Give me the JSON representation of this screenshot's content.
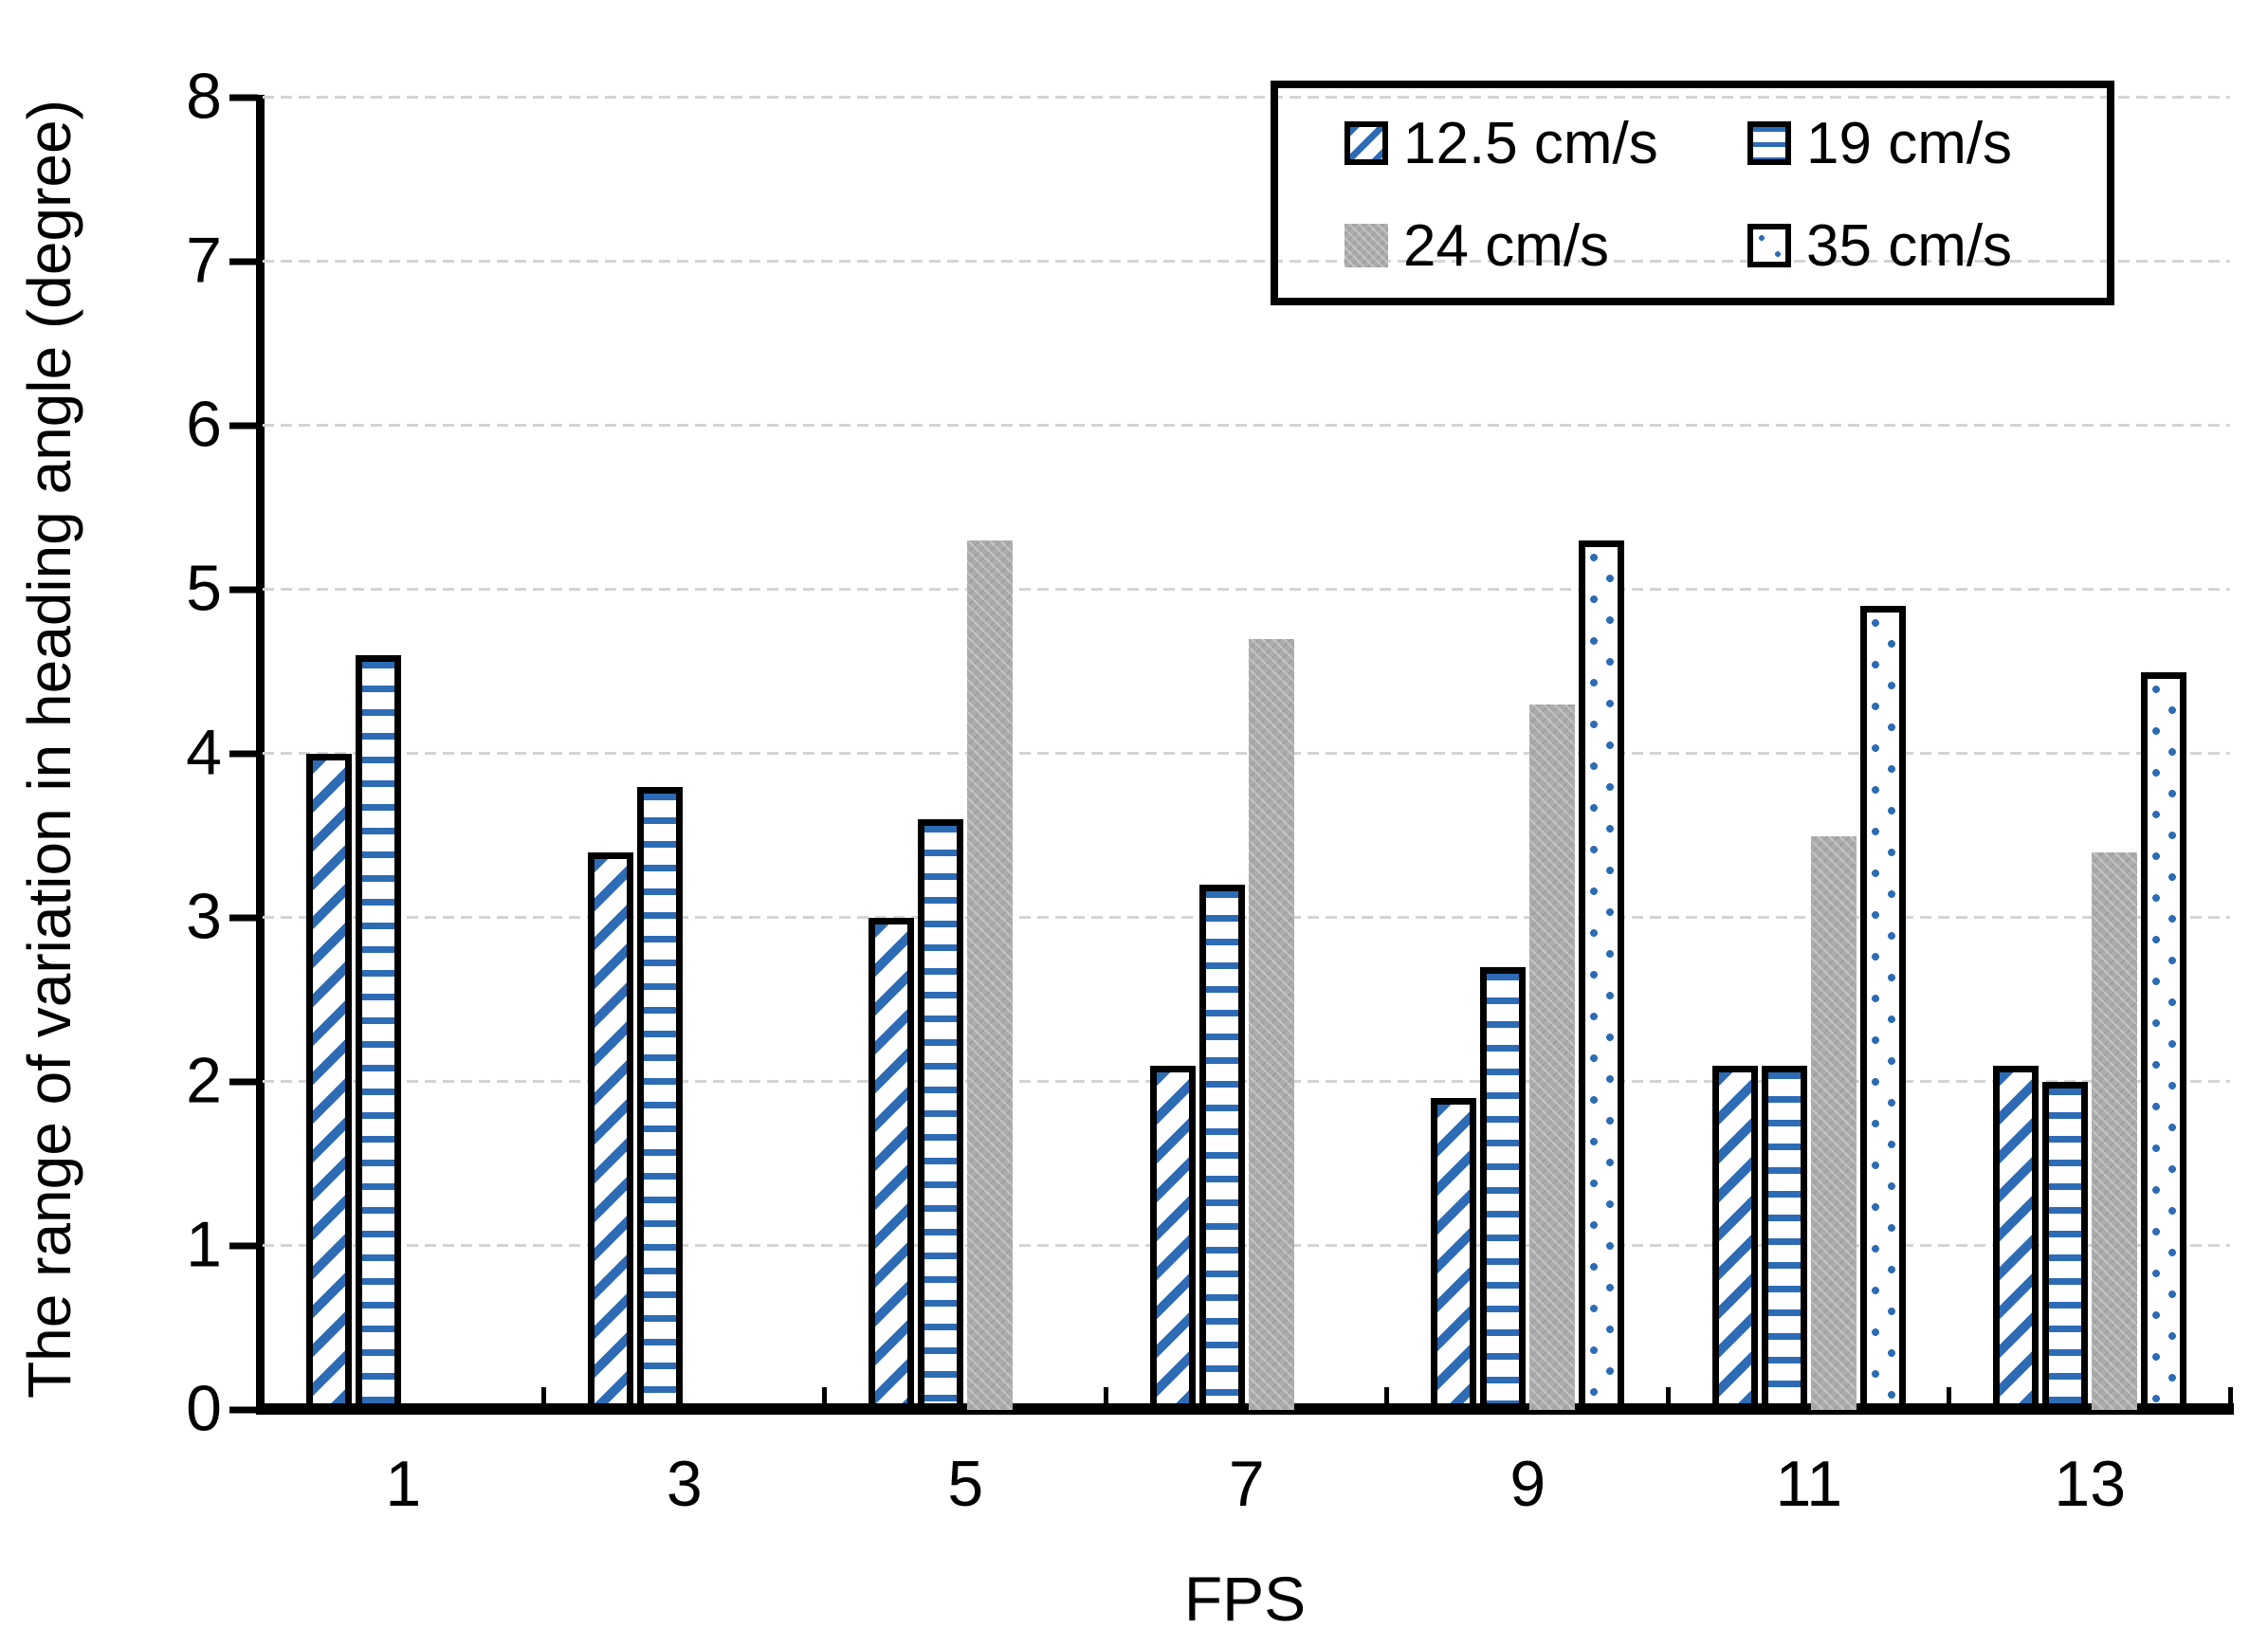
{
  "chart_data": {
    "type": "bar",
    "title": "",
    "xlabel": "FPS",
    "ylabel": "The range of variation in heading angle (degree)",
    "categories": [
      "1",
      "3",
      "5",
      "7",
      "9",
      "11",
      "13"
    ],
    "series": [
      {
        "name": "12.5 cm/s",
        "pattern": "blue-diagonal-stripes",
        "color": "#2d6cb5",
        "values": [
          4.0,
          3.4,
          3.0,
          2.1,
          1.9,
          2.1,
          2.1
        ]
      },
      {
        "name": "19 cm/s",
        "pattern": "blue-horizontal-stripes",
        "color": "#2d6cb5",
        "values": [
          4.6,
          3.8,
          3.6,
          3.2,
          2.7,
          2.1,
          2.0
        ]
      },
      {
        "name": "24 cm/s",
        "pattern": "solid-textured-gray",
        "color": "#acacac",
        "values": [
          null,
          null,
          5.3,
          4.7,
          4.3,
          3.5,
          3.4
        ]
      },
      {
        "name": "35 cm/s",
        "pattern": "blue-dots",
        "color": "#2d6cb5",
        "values": [
          null,
          null,
          null,
          null,
          5.3,
          4.9,
          4.5
        ]
      }
    ],
    "ylim": [
      0,
      8
    ],
    "yticks": [
      0,
      1,
      2,
      3,
      4,
      5,
      6,
      7,
      8
    ],
    "grid": "horizontal-dashed-light-gray",
    "gridline_color": "#d4d4d4",
    "legend_position": "top-right",
    "legend_border_color": "#000000",
    "axis_color": "#000000",
    "background_color": "#ffffff"
  }
}
